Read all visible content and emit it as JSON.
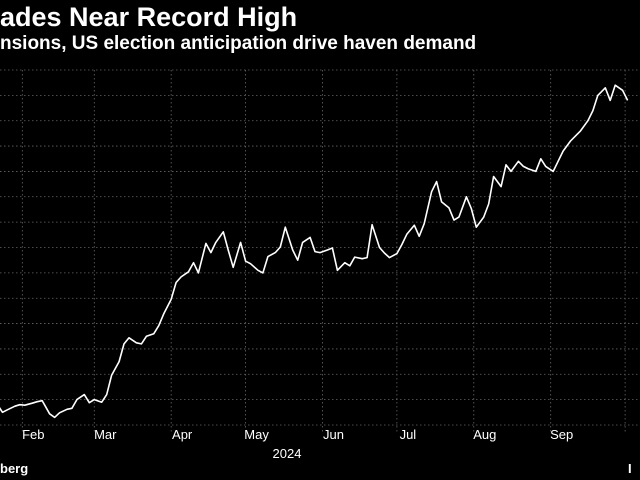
{
  "header": {
    "title": "ades Near Record High",
    "subtitle": "nsions, US election anticipation drive haven demand"
  },
  "footer": {
    "source": "berg",
    "right_mark": "I"
  },
  "chart_data": {
    "type": "line",
    "title": "ades Near Record High",
    "subtitle": "nsions, US election anticipation drive haven demand",
    "xlabel": "2024",
    "ylabel": "",
    "x_ticks": [
      "Feb",
      "Mar",
      "Apr",
      "May",
      "Jun",
      "Jul",
      "Aug",
      "Sep"
    ],
    "year_label": "2024",
    "grid": true,
    "line_color": "#ffffff",
    "series": [
      {
        "x": [
          "2024-01-22",
          "2024-01-24",
          "2024-01-26",
          "2024-01-29",
          "2024-01-31",
          "2024-02-02",
          "2024-02-05",
          "2024-02-07",
          "2024-02-09",
          "2024-02-12",
          "2024-02-14",
          "2024-02-16",
          "2024-02-19",
          "2024-02-21",
          "2024-02-23",
          "2024-02-26",
          "2024-02-28",
          "2024-03-01",
          "2024-03-04",
          "2024-03-06",
          "2024-03-08",
          "2024-03-11",
          "2024-03-13",
          "2024-03-15",
          "2024-03-18",
          "2024-03-20",
          "2024-03-22",
          "2024-03-25",
          "2024-03-27",
          "2024-03-29",
          "2024-04-01",
          "2024-04-03",
          "2024-04-05",
          "2024-04-08",
          "2024-04-10",
          "2024-04-12",
          "2024-04-15",
          "2024-04-17",
          "2024-04-19",
          "2024-04-22",
          "2024-04-24",
          "2024-04-26",
          "2024-04-29",
          "2024-05-01",
          "2024-05-03",
          "2024-05-06",
          "2024-05-08",
          "2024-05-10",
          "2024-05-13",
          "2024-05-15",
          "2024-05-17",
          "2024-05-20",
          "2024-05-22",
          "2024-05-24",
          "2024-05-27",
          "2024-05-29",
          "2024-05-31",
          "2024-06-03",
          "2024-06-05",
          "2024-06-07",
          "2024-06-10",
          "2024-06-12",
          "2024-06-14",
          "2024-06-17",
          "2024-06-19",
          "2024-06-21",
          "2024-06-24",
          "2024-06-26",
          "2024-06-28",
          "2024-07-01",
          "2024-07-03",
          "2024-07-05",
          "2024-07-08",
          "2024-07-10",
          "2024-07-12",
          "2024-07-15",
          "2024-07-17",
          "2024-07-19",
          "2024-07-22",
          "2024-07-24",
          "2024-07-26",
          "2024-07-29",
          "2024-07-31",
          "2024-08-02",
          "2024-08-05",
          "2024-08-07",
          "2024-08-09",
          "2024-08-12",
          "2024-08-14",
          "2024-08-16",
          "2024-08-19",
          "2024-08-21",
          "2024-08-23",
          "2024-08-26",
          "2024-08-28",
          "2024-08-30",
          "2024-09-02",
          "2024-09-04",
          "2024-09-06",
          "2024-09-09",
          "2024-09-11",
          "2024-09-13",
          "2024-09-16",
          "2024-09-18",
          "2024-09-20",
          "2024-09-23",
          "2024-09-25",
          "2024-09-27",
          "2024-09-30",
          "2024-10-02"
        ],
        "values": [
          2040,
          2025,
          2030,
          2037,
          2040,
          2039,
          2043,
          2046,
          2048,
          2022,
          2015,
          2024,
          2031,
          2033,
          2050,
          2060,
          2044,
          2050,
          2045,
          2060,
          2098,
          2125,
          2160,
          2172,
          2162,
          2160,
          2175,
          2180,
          2196,
          2219,
          2248,
          2281,
          2292,
          2302,
          2320,
          2300,
          2358,
          2340,
          2360,
          2381,
          2345,
          2311,
          2360,
          2323,
          2318,
          2305,
          2300,
          2332,
          2340,
          2351,
          2390,
          2345,
          2325,
          2360,
          2370,
          2342,
          2340,
          2345,
          2349,
          2305,
          2320,
          2314,
          2331,
          2328,
          2330,
          2395,
          2350,
          2339,
          2330,
          2338,
          2356,
          2376,
          2394,
          2372,
          2397,
          2460,
          2480,
          2440,
          2428,
          2404,
          2410,
          2450,
          2427,
          2390,
          2410,
          2436,
          2490,
          2470,
          2513,
          2500,
          2520,
          2510,
          2505,
          2500,
          2525,
          2510,
          2500,
          2520,
          2540,
          2560,
          2570,
          2580,
          2600,
          2620,
          2650,
          2665,
          2640,
          2670,
          2660,
          2640
        ]
      }
    ],
    "ylim": [
      2000,
      2700
    ],
    "y_gridlines": [
      2000,
      2050,
      2100,
      2150,
      2200,
      2250,
      2300,
      2350,
      2400,
      2450,
      2500,
      2550,
      2600,
      2650,
      2700
    ]
  }
}
